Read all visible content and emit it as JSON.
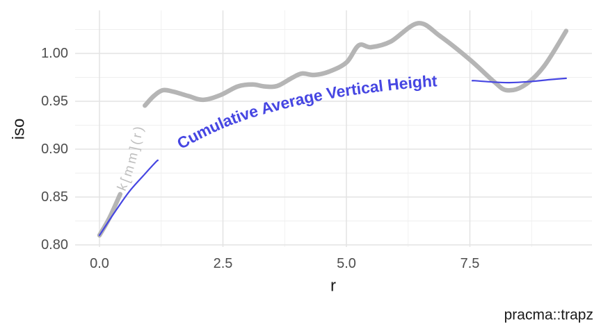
{
  "figure": {
    "caption": "pracma::trapz",
    "background": "#ffffff"
  },
  "colors": {
    "axis_text": "#4d4d4d",
    "title_text": "#1a1a1a",
    "caption_text": "#1a1a1a",
    "grid_major": "#e4e4e4",
    "grid_minor": "#efefef",
    "gray_series": "#b5b5b5",
    "gray_label": "#bfbfbf",
    "blue_series": "#4646e2"
  },
  "chart_data": {
    "type": "line",
    "title": "",
    "xlabel": "r",
    "ylabel": "iso",
    "caption": "pracma::trapz",
    "grid": "major and minor, light gray on white (ggplot theme_minimal)",
    "legend": "none - series labeled by text drawn along the curves",
    "x_axis": {
      "ticks": [
        0.0,
        2.5,
        5.0,
        7.5
      ],
      "tick_labels": [
        "0.0",
        "2.5",
        "5.0",
        "7.5"
      ],
      "minor_ticks": [
        1.25,
        3.75,
        6.25,
        8.75
      ],
      "range": [
        -0.49,
        9.97
      ]
    },
    "y_axis": {
      "ticks": [
        0.8,
        0.85,
        0.9,
        0.95,
        1.0
      ],
      "tick_labels": [
        "0.80",
        "0.85",
        "0.90",
        "0.95",
        "1.00"
      ],
      "minor_ticks": [
        0.825,
        0.875,
        0.925,
        0.975,
        1.025
      ],
      "range": [
        0.796,
        1.045
      ]
    },
    "series": [
      {
        "id": "kmm-curve",
        "name": "k[mm](r)",
        "label_on_path": "k[mm](r)",
        "color": "#b5b5b5",
        "label_color": "#bfbfbf",
        "width": 6.5,
        "font_size": 19,
        "font_weight": "normal",
        "letter_spacing": 3.5,
        "label_gap_x": [
          0.42,
          0.92
        ],
        "label_path_extend": 0.35,
        "points": [
          [
            0.0,
            0.81
          ],
          [
            0.2,
            0.828
          ],
          [
            0.42,
            0.853
          ],
          [
            0.65,
            0.885
          ],
          [
            0.92,
            0.9455
          ],
          [
            1.1,
            0.9555
          ],
          [
            1.28,
            0.9615
          ],
          [
            1.5,
            0.96
          ],
          [
            1.8,
            0.9555
          ],
          [
            2.1,
            0.9515
          ],
          [
            2.45,
            0.9565
          ],
          [
            2.8,
            0.9655
          ],
          [
            3.1,
            0.9675
          ],
          [
            3.35,
            0.9655
          ],
          [
            3.6,
            0.966
          ],
          [
            3.9,
            0.9745
          ],
          [
            4.1,
            0.979
          ],
          [
            4.35,
            0.9775
          ],
          [
            4.65,
            0.981
          ],
          [
            5.0,
            0.9905
          ],
          [
            5.25,
            1.0085
          ],
          [
            5.5,
            1.0065
          ],
          [
            5.9,
            1.0125
          ],
          [
            6.45,
            1.0315
          ],
          [
            6.9,
            1.018
          ],
          [
            7.5,
            0.9935
          ],
          [
            8.0,
            0.97
          ],
          [
            8.25,
            0.9615
          ],
          [
            8.6,
            0.9665
          ],
          [
            9.0,
            0.9865
          ],
          [
            9.45,
            1.0235
          ]
        ]
      },
      {
        "id": "cumavg-curve",
        "name": "Cumulative Average Vertical Height",
        "label_on_path": "Cumulative Average Vertical Height",
        "color": "#4646e2",
        "label_color": "#4646e2",
        "width": 2.2,
        "font_size": 23,
        "font_weight": "bold",
        "letter_spacing": 0,
        "label_gap_x": [
          1.18,
          7.55
        ],
        "label_path_extend": 0.4,
        "points": [
          [
            0.0,
            0.81
          ],
          [
            0.3,
            0.8335
          ],
          [
            0.6,
            0.8555
          ],
          [
            0.9,
            0.873
          ],
          [
            1.15,
            0.887
          ],
          [
            1.5,
            0.9
          ],
          [
            2.0,
            0.9145
          ],
          [
            2.5,
            0.9265
          ],
          [
            3.0,
            0.936
          ],
          [
            3.5,
            0.9435
          ],
          [
            4.0,
            0.95
          ],
          [
            4.5,
            0.9555
          ],
          [
            5.0,
            0.96
          ],
          [
            5.5,
            0.9635
          ],
          [
            6.0,
            0.9665
          ],
          [
            6.5,
            0.969
          ],
          [
            7.0,
            0.9705
          ],
          [
            7.6,
            0.9715
          ],
          [
            8.0,
            0.97
          ],
          [
            8.3,
            0.9695
          ],
          [
            8.7,
            0.9705
          ],
          [
            9.1,
            0.9725
          ],
          [
            9.45,
            0.974
          ]
        ]
      }
    ]
  }
}
